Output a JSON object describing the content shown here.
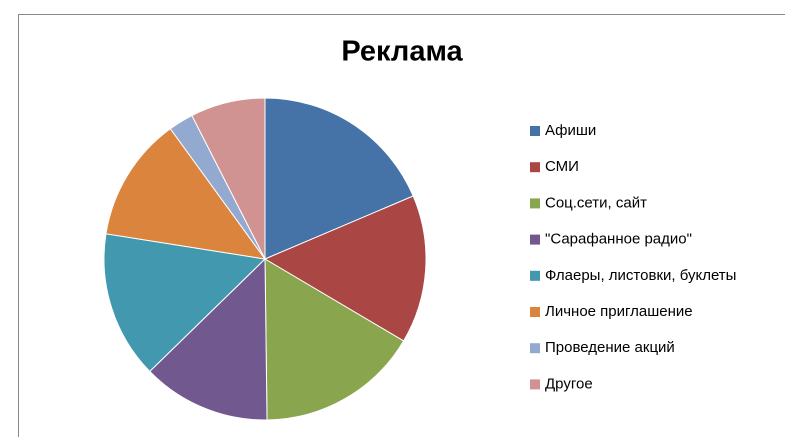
{
  "chart_data": {
    "type": "pie",
    "title": "Реклама",
    "categories": [
      "Афиши",
      "СМИ",
      "Соц.сети, сайт",
      "\"Сарафанное радио\"",
      "Флаеры, листовки, буклеты",
      "Личное приглашение",
      "Проведение акций",
      "Другое"
    ],
    "values": [
      18.6,
      14.9,
      16.3,
      12.9,
      14.8,
      12.5,
      2.5,
      7.5
    ],
    "colors": [
      "#4572a7",
      "#aa4643",
      "#89a54e",
      "#71588f",
      "#4198af",
      "#db843d",
      "#93a9cf",
      "#d19392"
    ],
    "legend": "right"
  }
}
